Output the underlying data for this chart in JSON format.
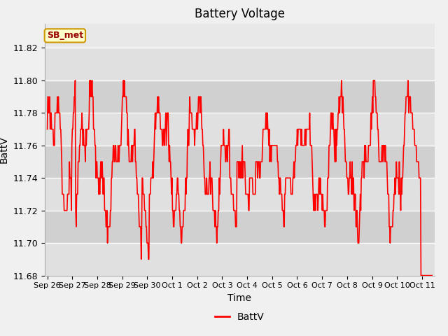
{
  "title": "Battery Voltage",
  "xlabel": "Time",
  "ylabel": "BattV",
  "legend_label": "BattV",
  "annotation_text": "SB_met",
  "ylim": [
    11.68,
    11.835
  ],
  "yticks": [
    11.68,
    11.7,
    11.72,
    11.74,
    11.76,
    11.78,
    11.8,
    11.82
  ],
  "line_color": "red",
  "line_width": 1.2,
  "fig_bg_color": "#f0f0f0",
  "plot_bg_color": "#e8e8e8",
  "annotation_bg": "#ffffcc",
  "annotation_border": "#cc9900",
  "annotation_text_color": "#990000",
  "grid_color": "white",
  "x_labels": [
    "Sep 26",
    "Sep 27",
    "Sep 28",
    "Sep 29",
    "Sep 30",
    "Oct 1",
    "Oct 2",
    "Oct 3",
    "Oct 4",
    "Oct 5",
    "Oct 6",
    "Oct 7",
    "Oct 8",
    "Oct 9",
    "Oct 10",
    "Oct 11"
  ],
  "band_colors": [
    "#e0e0e0",
    "#d0d0d0"
  ],
  "n_days": 15
}
